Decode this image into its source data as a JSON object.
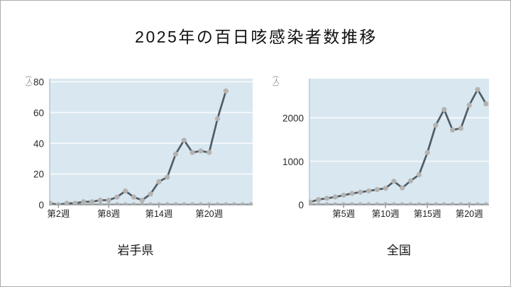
{
  "page": {
    "title": "2025年の百日咳感染者数推移"
  },
  "colors": {
    "plot_bg": "#d9e7f0",
    "gridline": "#f2f8fb",
    "series_line": "#505d66",
    "marker": "#b5b3b1",
    "axis_line": "#9aa0a3",
    "tick_mark": "#8a8f92",
    "tick_text": "#222222",
    "y_tick_text": "#2b2b2b",
    "unit_text": "#848d92",
    "plot_left_edge": "#bdd3e0",
    "page_border": "#adadad",
    "title_text": "#111111"
  },
  "chart_data": [
    {
      "type": "line",
      "title": "岩手県",
      "unit_label": "(人)",
      "weeks": [
        1,
        2,
        3,
        4,
        5,
        6,
        7,
        8,
        9,
        10,
        11,
        12,
        13,
        14,
        15,
        16,
        17,
        18,
        19,
        20,
        21,
        22
      ],
      "series": [
        {
          "name": "weekly_cases_2025_main",
          "values": [
            1,
            0,
            1,
            1,
            2,
            2,
            3,
            3,
            5,
            9,
            5,
            3,
            7,
            15,
            18,
            33,
            42,
            34,
            35,
            34,
            56,
            74
          ]
        },
        {
          "name": "near_zero_baseline",
          "values": [
            0,
            0,
            0,
            0,
            0,
            0,
            0,
            0,
            0,
            0,
            0,
            0,
            0,
            0,
            0,
            0,
            0,
            0,
            0,
            0,
            0,
            0,
            0,
            0,
            0
          ]
        }
      ],
      "ylim": [
        0,
        82
      ],
      "xlim_weeks": [
        1,
        25.3
      ],
      "y_ticks": [
        0,
        20,
        40,
        60,
        80
      ],
      "x_ticks": [
        {
          "week": 2,
          "label": "第2週"
        },
        {
          "week": 8,
          "label": "第8週"
        },
        {
          "week": 14,
          "label": "第14週"
        },
        {
          "week": 20,
          "label": "第20週"
        }
      ],
      "grid": true,
      "legend": "none"
    },
    {
      "type": "line",
      "title": "全国",
      "unit_label": "(人)",
      "weeks": [
        1,
        2,
        3,
        4,
        5,
        6,
        7,
        8,
        9,
        10,
        11,
        12,
        13,
        14,
        15,
        16,
        17,
        18,
        19,
        20,
        21,
        22
      ],
      "series": [
        {
          "name": "weekly_cases_2025_main",
          "values": [
            60,
            120,
            150,
            180,
            220,
            260,
            290,
            320,
            350,
            380,
            540,
            390,
            550,
            690,
            1200,
            1830,
            2190,
            1720,
            1760,
            2290,
            2650,
            2320
          ]
        },
        {
          "name": "near_zero_baseline",
          "values": [
            0,
            0,
            0,
            0,
            0,
            0,
            0,
            0,
            0,
            0,
            0,
            0,
            0,
            0,
            0,
            0,
            0,
            0,
            0,
            0,
            0,
            0
          ]
        }
      ],
      "ylim": [
        0,
        2900
      ],
      "xlim_weeks": [
        1,
        22.5
      ],
      "y_ticks": [
        0,
        1000,
        2000
      ],
      "x_ticks": [
        {
          "week": 5,
          "label": "第5週"
        },
        {
          "week": 10,
          "label": "第10週"
        },
        {
          "week": 15,
          "label": "第15週"
        },
        {
          "week": 20,
          "label": "第20週"
        }
      ],
      "grid": true,
      "legend": "none"
    }
  ]
}
